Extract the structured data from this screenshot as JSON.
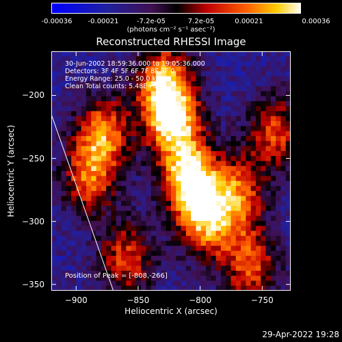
{
  "chart_data": {
    "type": "heatmap",
    "title": "Reconstructed RHESSI Image",
    "xlabel": "Heliocentric X (arcsec)",
    "ylabel": "Heliocentric Y (arcsec)",
    "xlim": [
      -920,
      -727
    ],
    "ylim": [
      -355,
      -165
    ],
    "xticks": [
      -900,
      -850,
      -800,
      -750
    ],
    "yticks": [
      -200,
      -250,
      -300,
      -350
    ],
    "colorbar": {
      "min": -0.00036,
      "max": 0.00036,
      "tick_values": [
        -0.00036,
        -0.00021,
        -7.2e-05,
        7.2e-05,
        0.00021,
        0.00036
      ],
      "tick_labels": [
        "-0.00036",
        "-0.00021",
        "-7.2e-05",
        "7.2e-05",
        "0.00021",
        "0.00036"
      ],
      "unit_label": "(photons cm⁻² s⁻¹ asec⁻²)"
    },
    "annotations": [
      "30-Jun-2002 18:59:36.000 to 19:05:36.000",
      "Detectors: 3F 4F 5F 6F 7F 8F 9F 0",
      "Energy Range: 25.0 - 50.0 keV",
      "Clean    Total counts: 5.48E+03"
    ],
    "peak": {
      "label": "Position of Peak = [-808,-266]",
      "x": -808,
      "y": -266
    },
    "sources": [
      {
        "x": -808,
        "y": -266,
        "peak": 0.00036
      },
      {
        "x": -822,
        "y": -220,
        "peak": 0.0003
      },
      {
        "x": -830,
        "y": -190,
        "peak": 0.00024
      },
      {
        "x": -795,
        "y": -300,
        "peak": 0.00022
      },
      {
        "x": -878,
        "y": -230,
        "peak": 0.0002
      },
      {
        "x": -890,
        "y": -265,
        "peak": 0.00016
      },
      {
        "x": -770,
        "y": -280,
        "peak": 0.00018
      },
      {
        "x": -740,
        "y": -230,
        "peak": 0.00015
      },
      {
        "x": -760,
        "y": -335,
        "peak": 0.00016
      },
      {
        "x": -860,
        "y": -330,
        "peak": 0.00014
      }
    ],
    "limb": [
      [
        -920,
        -215
      ],
      [
        -870,
        -355
      ]
    ]
  },
  "footer": {
    "timestamp": "29-Apr-2022 19:28"
  }
}
